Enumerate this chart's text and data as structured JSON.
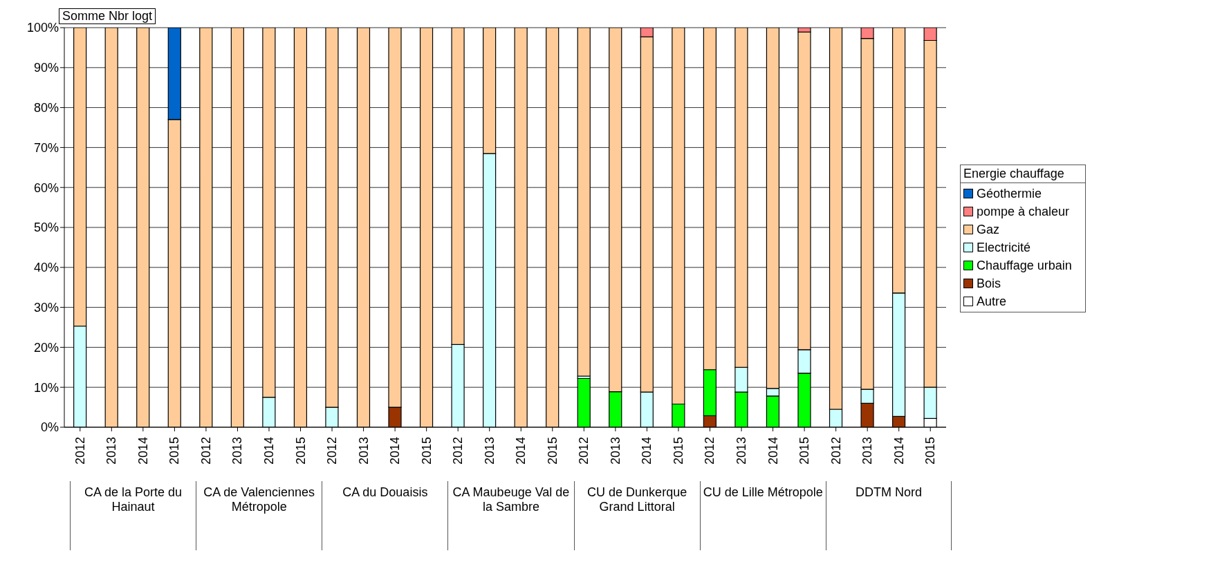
{
  "chart_data": {
    "type": "bar",
    "title": "Somme Nbr logt",
    "legend_title": "Energie chauffage",
    "stacked": true,
    "legend": "right",
    "grid": "y",
    "categories": [
      "2012",
      "2013",
      "2014",
      "2015",
      "2012",
      "2013",
      "2014",
      "2015",
      "2012",
      "2013",
      "2014",
      "2015",
      "2012",
      "2013",
      "2014",
      "2015",
      "2012",
      "2013",
      "2014",
      "2015",
      "2012",
      "2013",
      "2014",
      "2015",
      "2012",
      "2013",
      "2014",
      "2015"
    ],
    "annotations": [
      "CA de la Porte du Hainaut",
      "CA de Valenciennes Métropole",
      "CA du Douaisis",
      "CA Maubeuge Val de la Sambre",
      "CU de Dunkerque Grand Littoral",
      "CU de Lille Métropole",
      "DDTM Nord"
    ],
    "ylim": [
      0,
      100
    ],
    "yticks": [
      {
        "value": 0,
        "label": "0%"
      },
      {
        "value": 10,
        "label": "10%"
      },
      {
        "value": 20,
        "label": "20%"
      },
      {
        "value": 30,
        "label": "30%"
      },
      {
        "value": 40,
        "label": "40%"
      },
      {
        "value": 50,
        "label": "50%"
      },
      {
        "value": 60,
        "label": "60%"
      },
      {
        "value": 70,
        "label": "70%"
      },
      {
        "value": 80,
        "label": "80%"
      },
      {
        "value": 90,
        "label": "90%"
      },
      {
        "value": 100,
        "label": "100%"
      }
    ],
    "series": [
      {
        "name": "Autre",
        "color": "#ffffff",
        "values": [
          null,
          null,
          null,
          null,
          null,
          null,
          null,
          null,
          null,
          null,
          null,
          null,
          null,
          null,
          null,
          null,
          null,
          null,
          null,
          null,
          null,
          null,
          null,
          null,
          null,
          null,
          null,
          2.2
        ]
      },
      {
        "name": "Bois",
        "color": "#993300",
        "values": [
          null,
          null,
          null,
          null,
          null,
          null,
          null,
          null,
          null,
          null,
          5,
          null,
          null,
          null,
          null,
          null,
          null,
          null,
          null,
          null,
          2.9,
          null,
          null,
          null,
          null,
          6,
          2.7,
          null
        ]
      },
      {
        "name": "Chauffage urbain",
        "color": "#00ff00",
        "values": [
          null,
          null,
          null,
          null,
          null,
          null,
          null,
          null,
          null,
          null,
          null,
          null,
          null,
          null,
          null,
          null,
          12.2,
          8.9,
          null,
          5.8,
          11.5,
          8.8,
          7.8,
          13.5,
          null,
          null,
          null,
          null
        ]
      },
      {
        "name": "Electricité",
        "color": "#ccffff",
        "values": [
          25.3,
          null,
          null,
          null,
          null,
          null,
          7.5,
          null,
          5,
          null,
          null,
          null,
          20.7,
          68.5,
          null,
          null,
          0.6,
          null,
          8.8,
          null,
          null,
          6.2,
          1.9,
          5.9,
          4.5,
          3.5,
          30.9,
          7.8
        ]
      },
      {
        "name": "Gaz",
        "color": "#ffcc99",
        "values": [
          74.7,
          100,
          100,
          77,
          100,
          100,
          92.5,
          100,
          95,
          100,
          95,
          100,
          79.3,
          31.5,
          100,
          100,
          87.2,
          91.1,
          88.9,
          94.2,
          85.6,
          85,
          90.3,
          79.5,
          95.5,
          87.8,
          66.4,
          86.8
        ]
      },
      {
        "name": "pompe à chaleur",
        "color": "#ff8080",
        "values": [
          null,
          null,
          null,
          null,
          null,
          null,
          null,
          null,
          null,
          null,
          null,
          null,
          null,
          null,
          null,
          null,
          null,
          null,
          2.3,
          null,
          null,
          null,
          null,
          1.1,
          null,
          2.7,
          null,
          3.2
        ]
      },
      {
        "name": "Géothermie",
        "color": "#0066cc",
        "values": [
          null,
          null,
          null,
          23,
          null,
          null,
          null,
          null,
          null,
          null,
          null,
          null,
          null,
          null,
          null,
          null,
          null,
          null,
          null,
          null,
          null,
          null,
          null,
          null,
          null,
          null,
          null,
          null
        ]
      }
    ]
  }
}
